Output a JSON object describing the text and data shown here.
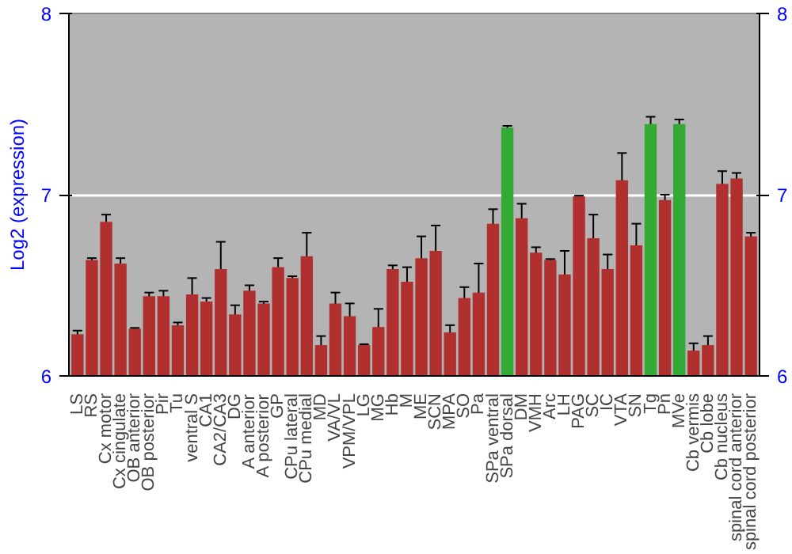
{
  "chart_data": {
    "type": "bar",
    "ylabel": "Log2 (expression)",
    "categories": [
      "LS",
      "RS",
      "Cx motor",
      "Cx cingulate",
      "OB anterior",
      "OB posterior",
      "Pir",
      "Tu",
      "ventral S",
      "CA1",
      "CA2/CA3",
      "DG",
      "A anterior",
      "A posterior",
      "GP",
      "CPu lateral",
      "CPu medial",
      "MD",
      "VA/VL",
      "VPM/VPL",
      "LG",
      "MG",
      "Hb",
      "M",
      "ME",
      "SCN",
      "MPA",
      "SO",
      "Pa",
      "SPa ventral",
      "SPa dorsal",
      "DM",
      "VMH",
      "Arc",
      "LH",
      "PAG",
      "SC",
      "IC",
      "VTA",
      "SN",
      "Tg",
      "Pn",
      "MVe",
      "Cb vermis",
      "Cb lobe",
      "Cb nucleus",
      "spinal cord anterior",
      "spinal cord posterior"
    ],
    "values": [
      6.23,
      6.64,
      6.85,
      6.62,
      6.26,
      6.44,
      6.44,
      6.28,
      6.45,
      6.41,
      6.59,
      6.34,
      6.47,
      6.4,
      6.6,
      6.54,
      6.66,
      6.17,
      6.4,
      6.33,
      6.17,
      6.27,
      6.59,
      6.52,
      6.65,
      6.69,
      6.24,
      6.43,
      6.46,
      6.84,
      7.37,
      6.87,
      6.68,
      6.64,
      6.56,
      6.99,
      6.76,
      6.59,
      7.08,
      6.72,
      7.39,
      6.97,
      7.39,
      6.14,
      6.17,
      7.06,
      7.09,
      6.77
    ],
    "errors": [
      0.02,
      0.01,
      0.04,
      0.03,
      0.005,
      0.02,
      0.03,
      0.015,
      0.09,
      0.02,
      0.15,
      0.05,
      0.03,
      0.01,
      0.05,
      0.01,
      0.13,
      0.05,
      0.06,
      0.07,
      0.005,
      0.1,
      0.02,
      0.08,
      0.12,
      0.14,
      0.04,
      0.06,
      0.16,
      0.08,
      0.01,
      0.08,
      0.03,
      0.005,
      0.13,
      0.005,
      0.13,
      0.08,
      0.15,
      0.12,
      0.04,
      0.03,
      0.025,
      0.04,
      0.05,
      0.07,
      0.03,
      0.02
    ],
    "colors": [
      "#b03030",
      "#b03030",
      "#b03030",
      "#b03030",
      "#b03030",
      "#b03030",
      "#b03030",
      "#b03030",
      "#b03030",
      "#b03030",
      "#b03030",
      "#b03030",
      "#b03030",
      "#b03030",
      "#b03030",
      "#b03030",
      "#b03030",
      "#b03030",
      "#b03030",
      "#b03030",
      "#b03030",
      "#b03030",
      "#b03030",
      "#b03030",
      "#b03030",
      "#b03030",
      "#b03030",
      "#b03030",
      "#b03030",
      "#b03030",
      "#33aa33",
      "#b03030",
      "#b03030",
      "#b03030",
      "#b03030",
      "#b03030",
      "#b03030",
      "#b03030",
      "#b03030",
      "#b03030",
      "#33aa33",
      "#b03030",
      "#33aa33",
      "#b03030",
      "#b03030",
      "#b03030",
      "#b03030",
      "#b03030"
    ],
    "ylim": [
      6,
      8
    ],
    "yticks": [
      6,
      7,
      8
    ],
    "y2lim": [
      6,
      8
    ],
    "y2ticks": [
      6,
      7,
      8
    ],
    "grid": "y"
  }
}
